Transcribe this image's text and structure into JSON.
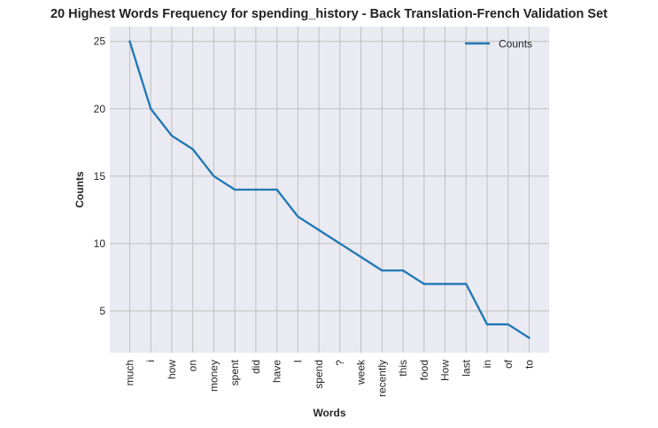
{
  "chart_data": {
    "type": "line",
    "title": "20 Highest Words Frequency for spending_history - Back Translation-French Validation Set",
    "xlabel": "Words",
    "ylabel": "Counts",
    "categories": [
      "much",
      "i",
      "how",
      "on",
      "money",
      "spent",
      "did",
      "have",
      "I",
      "spend",
      "?",
      "week",
      "recently",
      "this",
      "food",
      "How",
      "last",
      "in",
      "of",
      "to"
    ],
    "series": [
      {
        "name": "Counts",
        "values": [
          25,
          20,
          18,
          17,
          15,
          14,
          14,
          14,
          12,
          11,
          10,
          9,
          8,
          8,
          7,
          7,
          7,
          4,
          4,
          3
        ]
      }
    ],
    "yticks": [
      5,
      10,
      15,
      20,
      25
    ],
    "ylim": [
      1.9,
      26.1
    ],
    "grid": true,
    "legend_position": "top-right",
    "colors": {
      "line": "#1f77b4",
      "background": "#eaeaf2",
      "grid": "#c0c0c0"
    }
  }
}
